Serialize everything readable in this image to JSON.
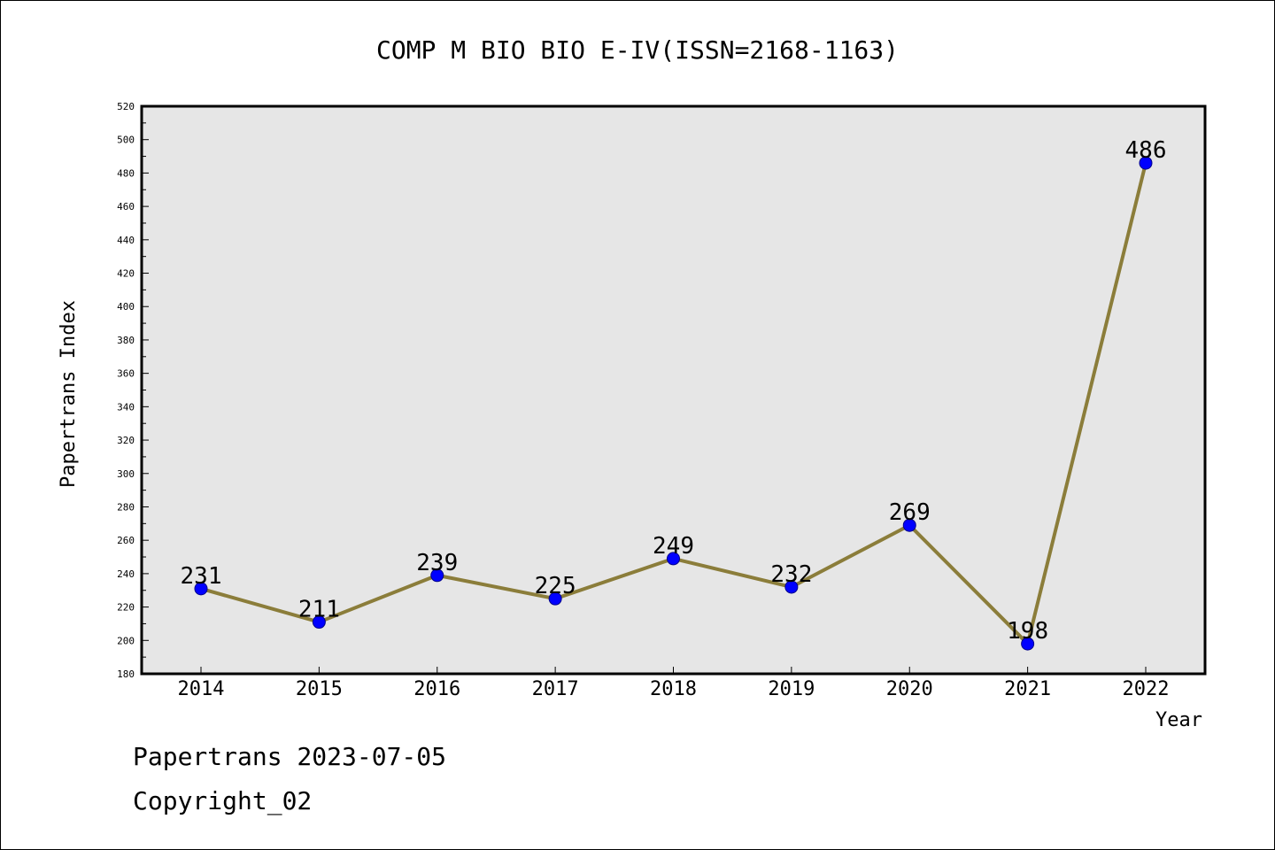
{
  "chart_data": {
    "type": "line",
    "title": "COMP M BIO BIO E-IV(ISSN=2168-1163)",
    "xlabel": "Year",
    "ylabel": "Papertrans Index",
    "categories": [
      "2014",
      "2015",
      "2016",
      "2017",
      "2018",
      "2019",
      "2020",
      "2021",
      "2022"
    ],
    "series": [
      {
        "values": [
          231,
          211,
          239,
          225,
          249,
          232,
          269,
          198,
          486
        ]
      }
    ],
    "data_labels": [
      "231",
      "211",
      "239",
      "225",
      "249",
      "232",
      "269",
      "198",
      "486"
    ],
    "ylim": [
      180,
      520
    ],
    "yticks": [
      "180",
      "200",
      "220",
      "240",
      "260",
      "280",
      "300",
      "320",
      "340",
      "360",
      "380",
      "400",
      "420",
      "440",
      "460",
      "480",
      "500",
      "520"
    ],
    "grid": false,
    "line_color": "#8B7D3A",
    "marker_color": "#0000FF",
    "plot_background": "#E6E6E6"
  },
  "footer": {
    "line1": "Papertrans 2023-07-05",
    "line2": "Copyright_02"
  }
}
